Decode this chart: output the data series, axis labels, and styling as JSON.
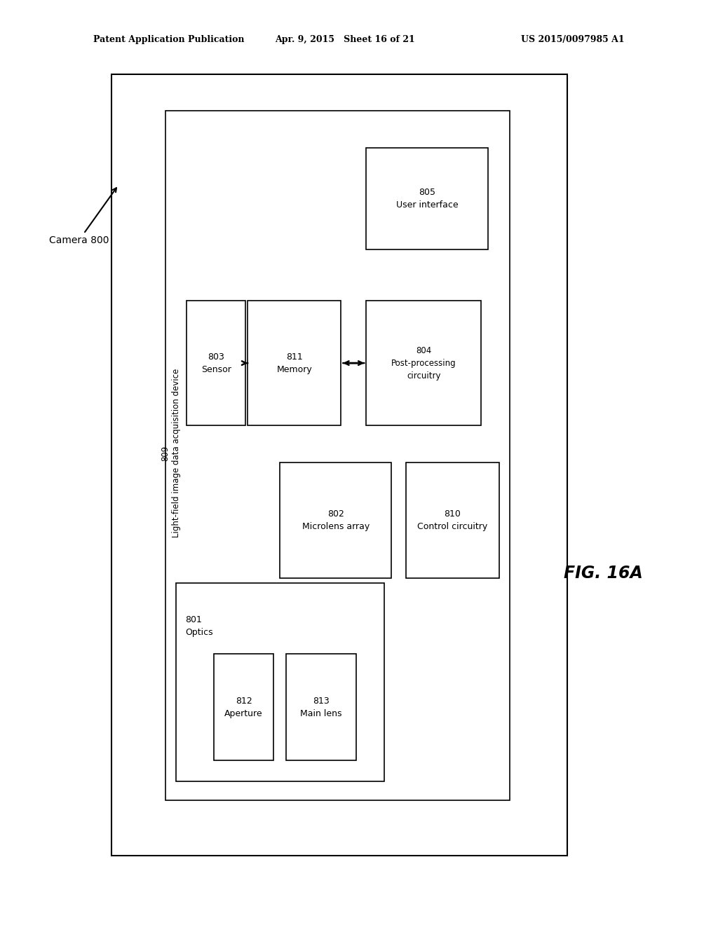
{
  "bg_color": "#ffffff",
  "header_left": "Patent Application Publication",
  "header_mid": "Apr. 9, 2015   Sheet 16 of 21",
  "header_right": "US 2015/0097985 A1",
  "fig_label": "FIG. 16A",
  "camera_label": "Camera 800"
}
